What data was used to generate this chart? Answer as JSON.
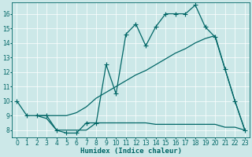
{
  "xlabel": "Humidex (Indice chaleur)",
  "bg_color": "#cce8e8",
  "line_color": "#006666",
  "xlim": [
    -0.5,
    23.5
  ],
  "ylim": [
    7.5,
    16.8
  ],
  "yticks": [
    8,
    9,
    10,
    11,
    12,
    13,
    14,
    15,
    16
  ],
  "xticks": [
    0,
    1,
    2,
    3,
    4,
    5,
    6,
    7,
    8,
    9,
    10,
    11,
    12,
    13,
    14,
    15,
    16,
    17,
    18,
    19,
    20,
    21,
    22,
    23
  ],
  "line1_x": [
    0,
    1,
    2,
    3,
    4,
    5,
    6,
    7,
    8,
    9,
    10,
    11,
    12,
    13,
    14,
    15,
    16,
    17,
    18,
    19,
    20,
    21,
    22,
    23
  ],
  "line1_y": [
    10,
    9,
    9,
    9,
    8,
    7.8,
    7.8,
    8.5,
    8.5,
    12.5,
    10.5,
    14.6,
    15.3,
    13.8,
    15.1,
    16.0,
    16.0,
    16.0,
    16.6,
    15.1,
    14.4,
    12.2,
    10.0,
    8.0
  ],
  "line2_x": [
    2,
    3,
    4,
    5,
    6,
    7,
    8,
    9,
    10,
    11,
    12,
    13,
    14,
    15,
    16,
    17,
    18,
    19,
    20,
    21,
    22,
    23
  ],
  "line2_y": [
    9.0,
    9.0,
    9.0,
    9.0,
    9.2,
    9.6,
    10.2,
    10.6,
    11.0,
    11.4,
    11.8,
    12.1,
    12.5,
    12.9,
    13.3,
    13.6,
    14.0,
    14.3,
    14.5,
    12.2,
    10.0,
    8.0
  ],
  "line3_x": [
    2,
    3,
    4,
    5,
    6,
    7,
    8,
    9,
    10,
    11,
    12,
    13,
    14,
    15,
    16,
    17,
    18,
    19,
    20,
    21,
    22,
    23
  ],
  "line3_y": [
    9.0,
    8.8,
    8.0,
    8.0,
    8.0,
    8.0,
    8.5,
    8.5,
    8.5,
    8.5,
    8.5,
    8.5,
    8.4,
    8.4,
    8.4,
    8.4,
    8.4,
    8.4,
    8.4,
    8.2,
    8.2,
    8.0
  ],
  "marker": "+",
  "marker_size": 4,
  "line_width": 0.9,
  "xlabel_fontsize": 6.5,
  "tick_fontsize": 5.5,
  "grid_color": "#b0d4d4",
  "grid_lw": 0.5
}
